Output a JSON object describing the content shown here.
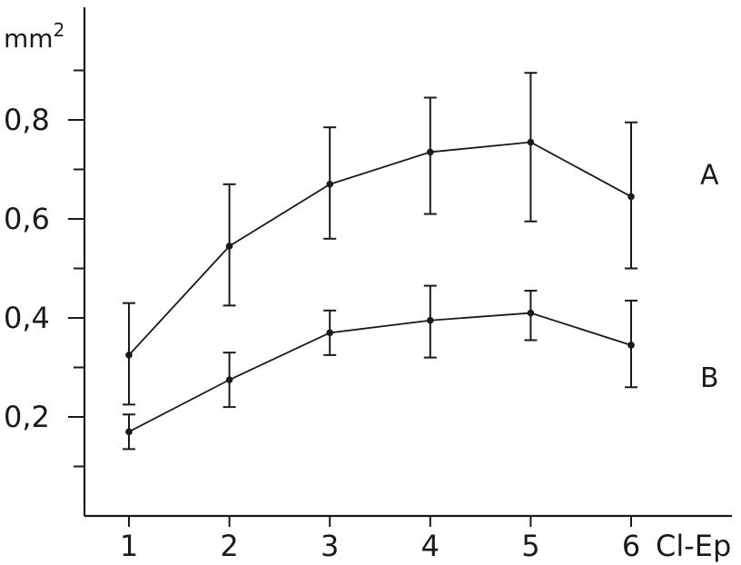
{
  "chart_data": {
    "type": "line",
    "xlabel": "Cl-Ep",
    "ylabel": "mm",
    "ylabel_sup": "2",
    "x": [
      1,
      2,
      3,
      4,
      5,
      6
    ],
    "x_tick_labels": [
      "1",
      "2",
      "3",
      "4",
      "5",
      "6"
    ],
    "y_tick_labels": [
      "0,2",
      "0,4",
      "0,6",
      "0,8"
    ],
    "y_ticks": [
      0.2,
      0.4,
      0.6,
      0.8
    ],
    "y_minor_ticks": [
      0.1,
      0.3,
      0.5,
      0.7,
      0.9
    ],
    "ylim": [
      0,
      1.04
    ],
    "xlim": [
      0.5,
      6.5
    ],
    "grid": false,
    "series": [
      {
        "name": "A",
        "values": [
          0.325,
          0.545,
          0.67,
          0.735,
          0.755,
          0.645
        ],
        "err_low": [
          0.225,
          0.425,
          0.56,
          0.61,
          0.595,
          0.5
        ],
        "err_high": [
          0.43,
          0.67,
          0.785,
          0.845,
          0.895,
          0.795
        ]
      },
      {
        "name": "B",
        "values": [
          0.17,
          0.275,
          0.37,
          0.395,
          0.41,
          0.345
        ],
        "err_low": [
          0.135,
          0.22,
          0.325,
          0.32,
          0.355,
          0.26
        ],
        "err_high": [
          0.205,
          0.33,
          0.415,
          0.465,
          0.455,
          0.435
        ]
      }
    ]
  }
}
